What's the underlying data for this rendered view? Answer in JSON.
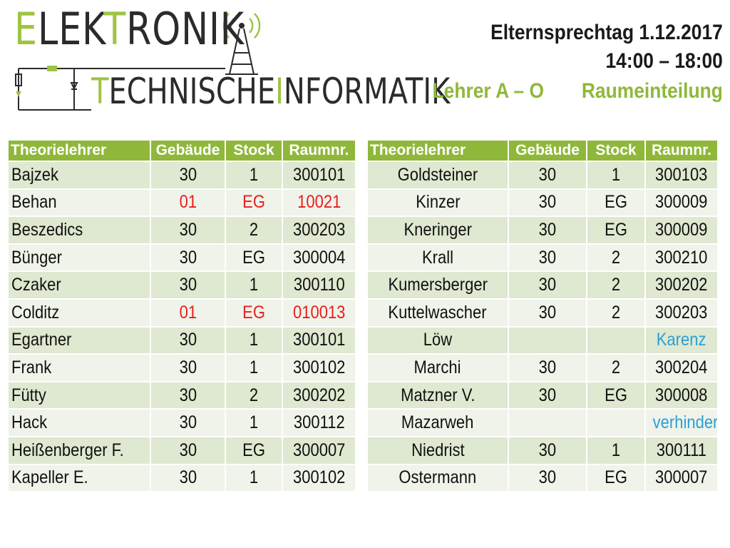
{
  "logo": {
    "line1_prefix": "E",
    "line1_mid": "LEK",
    "line1_accent": "T",
    "line1_rest": "RONIK",
    "line2_prefix": "T",
    "line2_mid": "ECHNISCHE",
    "line2_accent": "I",
    "line2_rest": "NFORMATIK",
    "accent_color": "#9ec443"
  },
  "header": {
    "title": "Elternsprechtag 1.12.2017",
    "time": "14:00 – 18:00",
    "group": "Lehrer A – O",
    "subtitle": "Raumeinteilung"
  },
  "columns": [
    "Theorielehrer",
    "Gebäude",
    "Stock",
    "Raumnr."
  ],
  "left_rows": [
    {
      "name": "Bajzek",
      "building": "30",
      "floor": "1",
      "room": "300101",
      "style": ""
    },
    {
      "name": "Behan",
      "building": "01",
      "floor": "EG",
      "room": "10021",
      "style": "red"
    },
    {
      "name": "Beszedics",
      "building": "30",
      "floor": "2",
      "room": "300203",
      "style": ""
    },
    {
      "name": "Bünger",
      "building": "30",
      "floor": "EG",
      "room": "300004",
      "style": ""
    },
    {
      "name": "Czaker",
      "building": "30",
      "floor": "1",
      "room": "300110",
      "style": ""
    },
    {
      "name": "Colditz",
      "building": "01",
      "floor": "EG",
      "room": "010013",
      "style": "red"
    },
    {
      "name": "Egartner",
      "building": "30",
      "floor": "1",
      "room": "300101",
      "style": ""
    },
    {
      "name": "Frank",
      "building": "30",
      "floor": "1",
      "room": "300102",
      "style": ""
    },
    {
      "name": "Fütty",
      "building": "30",
      "floor": "2",
      "room": "300202",
      "style": ""
    },
    {
      "name": "Hack",
      "building": "30",
      "floor": "1",
      "room": "300112",
      "style": ""
    },
    {
      "name": "Heißenberger F.",
      "building": "30",
      "floor": "EG",
      "room": "300007",
      "style": ""
    },
    {
      "name": "Kapeller E.",
      "building": "30",
      "floor": "1",
      "room": "300102",
      "style": ""
    }
  ],
  "right_rows": [
    {
      "name": "Goldsteiner",
      "building": "30",
      "floor": "1",
      "room": "300103",
      "style": ""
    },
    {
      "name": "Kinzer",
      "building": "30",
      "floor": "EG",
      "room": "300009",
      "style": ""
    },
    {
      "name": "Kneringer",
      "building": "30",
      "floor": "EG",
      "room": "300009",
      "style": ""
    },
    {
      "name": "Krall",
      "building": "30",
      "floor": "2",
      "room": "300210",
      "style": ""
    },
    {
      "name": "Kumersberger",
      "building": "30",
      "floor": "2",
      "room": "300202",
      "style": ""
    },
    {
      "name": "Kuttelwascher",
      "building": "30",
      "floor": "2",
      "room": "300203",
      "style": ""
    },
    {
      "name": "Löw",
      "building": "",
      "floor": "",
      "room": "Karenz",
      "style": "blue"
    },
    {
      "name": "Marchi",
      "building": "30",
      "floor": "2",
      "room": "300204",
      "style": ""
    },
    {
      "name": "Matzner V.",
      "building": "30",
      "floor": "EG",
      "room": "300008",
      "style": ""
    },
    {
      "name": "Mazarweh",
      "building": "",
      "floor": "",
      "room": "verhindert",
      "style": "blue"
    },
    {
      "name": "Niedrist",
      "building": "30",
      "floor": "1",
      "room": "300111",
      "style": ""
    },
    {
      "name": "Ostermann",
      "building": "30",
      "floor": "EG",
      "room": "300007",
      "style": ""
    }
  ],
  "colors": {
    "header_green": "#8fb83a",
    "row_dark": "#dfe8d0",
    "row_light": "#eff3e9",
    "red": "#e81e1e",
    "blue": "#2aa0d8"
  }
}
